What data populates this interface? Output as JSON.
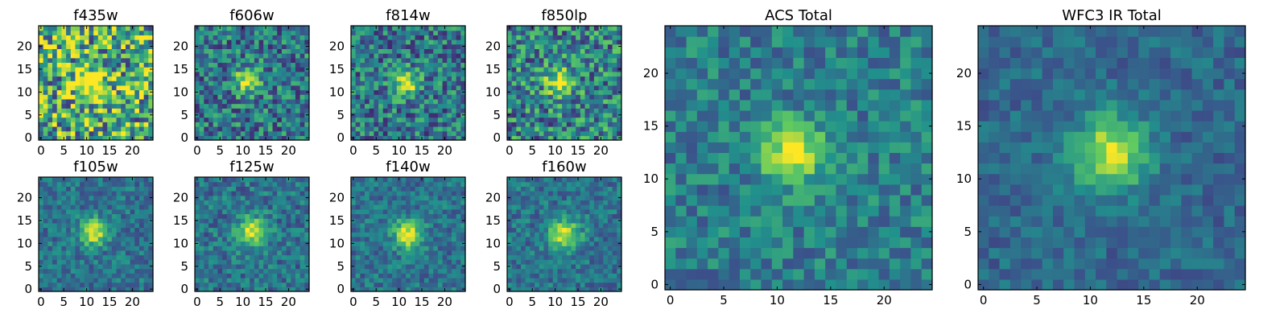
{
  "chart_data": [
    {
      "type": "heatmap",
      "title": "f435w",
      "xlim": [
        0,
        24
      ],
      "ylim": [
        0,
        24
      ],
      "source_center": [
        11,
        12
      ],
      "source_peak": 0.55,
      "source_sigma": 2.4,
      "noise": 0.45,
      "background": 0.62,
      "seed": 11,
      "xticks": [
        "0",
        "5",
        "10",
        "15",
        "20"
      ],
      "yticks": [
        "0",
        "5",
        "10",
        "15",
        "20"
      ]
    },
    {
      "type": "heatmap",
      "title": "f606w",
      "xlim": [
        0,
        24
      ],
      "ylim": [
        0,
        24
      ],
      "source_center": [
        11,
        12.5
      ],
      "source_peak": 0.55,
      "source_sigma": 2.0,
      "noise": 0.28,
      "background": 0.4,
      "seed": 23,
      "xticks": [
        "0",
        "5",
        "10",
        "15",
        "20"
      ],
      "yticks": [
        "0",
        "5",
        "10",
        "15",
        "20"
      ]
    },
    {
      "type": "heatmap",
      "title": "f814w",
      "xlim": [
        0,
        24
      ],
      "ylim": [
        0,
        24
      ],
      "source_center": [
        11.5,
        12
      ],
      "source_peak": 0.55,
      "source_sigma": 2.0,
      "noise": 0.28,
      "background": 0.4,
      "seed": 37,
      "xticks": [
        "0",
        "5",
        "10",
        "15",
        "20"
      ],
      "yticks": [
        "0",
        "5",
        "10",
        "15",
        "20"
      ]
    },
    {
      "type": "heatmap",
      "title": "f850lp",
      "xlim": [
        0,
        24
      ],
      "ylim": [
        0,
        24
      ],
      "source_center": [
        11,
        12.5
      ],
      "source_peak": 0.5,
      "source_sigma": 2.2,
      "noise": 0.32,
      "background": 0.45,
      "seed": 41,
      "xticks": [
        "0",
        "5",
        "10",
        "15",
        "20"
      ],
      "yticks": [
        "0",
        "5",
        "10",
        "15",
        "20"
      ]
    },
    {
      "type": "heatmap",
      "title": "f105w",
      "xlim": [
        0,
        24
      ],
      "ylim": [
        0,
        24
      ],
      "source_center": [
        11.5,
        12.5
      ],
      "source_peak": 0.6,
      "source_sigma": 2.0,
      "noise": 0.16,
      "background": 0.38,
      "seed": 53,
      "xticks": [
        "0",
        "5",
        "10",
        "15",
        "20"
      ],
      "yticks": [
        "0",
        "5",
        "10",
        "15",
        "20"
      ]
    },
    {
      "type": "heatmap",
      "title": "f125w",
      "xlim": [
        0,
        24
      ],
      "ylim": [
        0,
        24
      ],
      "source_center": [
        12,
        12.5
      ],
      "source_peak": 0.55,
      "source_sigma": 2.3,
      "noise": 0.18,
      "background": 0.38,
      "seed": 61,
      "xticks": [
        "0",
        "5",
        "10",
        "15",
        "20"
      ],
      "yticks": [
        "0",
        "5",
        "10",
        "15",
        "20"
      ]
    },
    {
      "type": "heatmap",
      "title": "f140w",
      "xlim": [
        0,
        24
      ],
      "ylim": [
        0,
        24
      ],
      "source_center": [
        12,
        12
      ],
      "source_peak": 0.6,
      "source_sigma": 2.2,
      "noise": 0.16,
      "background": 0.38,
      "seed": 71,
      "xticks": [
        "0",
        "5",
        "10",
        "15",
        "20"
      ],
      "yticks": [
        "0",
        "5",
        "10",
        "15",
        "20"
      ]
    },
    {
      "type": "heatmap",
      "title": "f160w",
      "xlim": [
        0,
        24
      ],
      "ylim": [
        0,
        24
      ],
      "source_center": [
        12,
        12
      ],
      "source_peak": 0.6,
      "source_sigma": 2.3,
      "noise": 0.16,
      "background": 0.38,
      "seed": 83,
      "xticks": [
        "0",
        "5",
        "10",
        "15",
        "20"
      ],
      "yticks": [
        "0",
        "5",
        "10",
        "15",
        "20"
      ]
    },
    {
      "type": "heatmap",
      "title": "ACS Total",
      "xlim": [
        0,
        24
      ],
      "ylim": [
        0,
        24
      ],
      "source_center": [
        11.5,
        12.5
      ],
      "source_peak": 0.6,
      "source_sigma": 2.0,
      "noise": 0.18,
      "background": 0.42,
      "seed": 97,
      "xticks": [
        "0",
        "5",
        "10",
        "15",
        "20"
      ],
      "yticks": [
        "0",
        "5",
        "10",
        "15",
        "20"
      ]
    },
    {
      "type": "heatmap",
      "title": "WFC3 IR Total",
      "xlim": [
        0,
        24
      ],
      "ylim": [
        0,
        24
      ],
      "source_center": [
        12,
        12.5
      ],
      "source_peak": 0.6,
      "source_sigma": 2.4,
      "noise": 0.12,
      "background": 0.34,
      "seed": 101,
      "xticks": [
        "0",
        "5",
        "10",
        "15",
        "20"
      ],
      "yticks": [
        "0",
        "5",
        "10",
        "15",
        "20"
      ]
    }
  ],
  "colormap": [
    "#440154",
    "#3b528b",
    "#21918c",
    "#5ec962",
    "#fde725"
  ]
}
